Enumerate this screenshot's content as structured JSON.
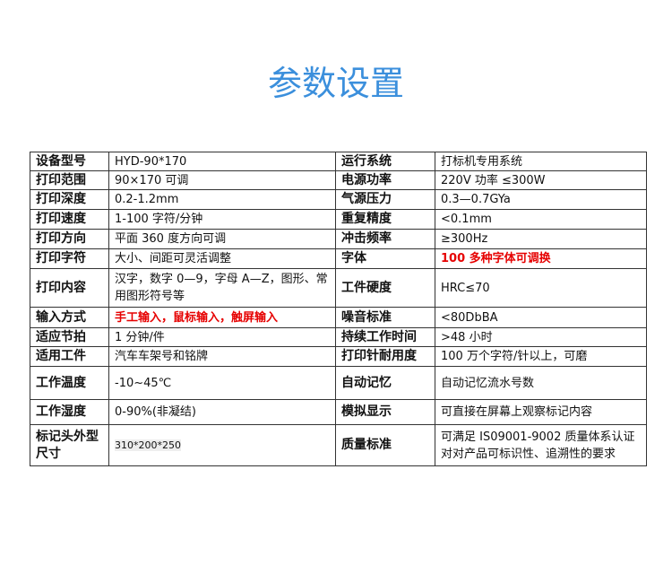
{
  "title": "参数设置",
  "rows": [
    {
      "k1": "设备型号",
      "v1": "HYD-90*170",
      "k2": "运行系统",
      "v2": "打标机专用系统"
    },
    {
      "k1": "打印范围",
      "v1": "90×170 可调",
      "k2": "电源功率",
      "v2": "220V 功率 ≤300W"
    },
    {
      "k1": "打印深度",
      "v1": "0.2-1.2mm",
      "k2": "气源压力",
      "v2": "0.3—0.7GYa"
    },
    {
      "k1": "打印速度",
      "v1": "1-100 字符/分钟",
      "k2": "重复精度",
      "v2": "<0.1mm"
    },
    {
      "k1": "打印方向",
      "v1": "平面 360 度方向可调",
      "k2": "冲击频率",
      "v2": "≥300Hz"
    },
    {
      "k1": "打印字符",
      "v1": "大小、间距可灵活调整",
      "k2": "字体",
      "v2": "100 多种字体可调换"
    },
    {
      "k1": "打印内容",
      "v1": "汉字，数字 0—9，字母 A—Z，图形、常用图形符号等",
      "k2": "工件硬度",
      "v2": "HRC≤70"
    },
    {
      "k1": "输入方式",
      "v1": "手工输入，鼠标输入，触屏输入",
      "k2": "噪音标准",
      "v2": "<80DbBA"
    },
    {
      "k1": "适应节拍",
      "v1": "1 分钟/件",
      "k2": "持续工作时间",
      "v2": ">48 小时"
    },
    {
      "k1": "适用工件",
      "v1": "汽车车架号和铭牌",
      "k2": "打印针耐用度",
      "v2": "100 万个字符/针以上，可磨"
    },
    {
      "k1": "工作温度",
      "v1": "-10~45℃",
      "k2": "自动记忆",
      "v2": "自动记忆流水号数"
    },
    {
      "k1": "工作湿度",
      "v1": "0-90%(非凝结)",
      "k2": "模拟显示",
      "v2": "可直接在屏幕上观察标记内容"
    },
    {
      "k1": "标记头外型尺寸",
      "v1": "310*200*250",
      "k2": "质量标准",
      "v2": "可满足 IS09001-9002 质量体系认证对对产品可标识性、追溯性的要求"
    }
  ],
  "colors": {
    "title": "#3b8fdc",
    "highlight": "#e60000"
  }
}
